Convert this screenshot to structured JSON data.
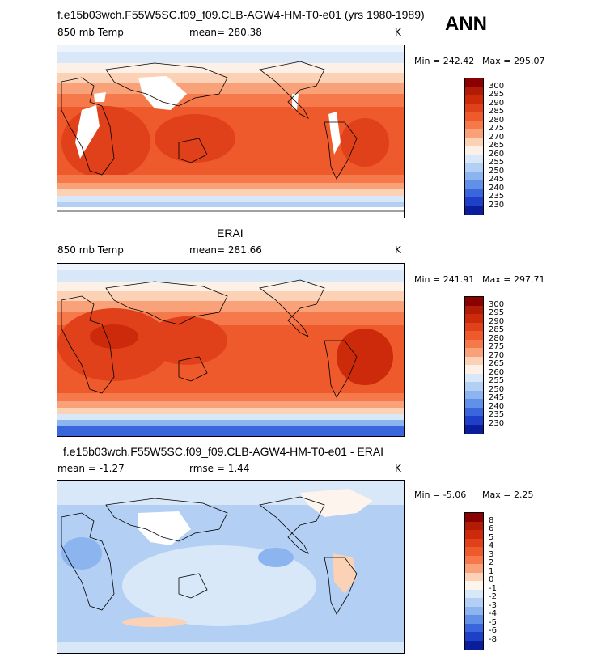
{
  "header": {
    "run_title": "f.e15b03wch.F55W5SC.f09_f09.CLB-AGW4-HM-T0-e01 (yrs 1980-1989)",
    "season": "ANN"
  },
  "panels": [
    {
      "title": "",
      "left_label": "850 mb Temp",
      "mean_label": "mean= 280.38",
      "units": "K",
      "min_label": "Min = 242.42",
      "max_label": "Max = 295.07",
      "colorbar": {
        "labels": [
          "300",
          "295",
          "290",
          "285",
          "280",
          "275",
          "270",
          "265",
          "260",
          "255",
          "250",
          "245",
          "240",
          "235",
          "230"
        ],
        "colors": [
          "#8b0000",
          "#b01c06",
          "#cc2a0a",
          "#e0401a",
          "#ee5a2c",
          "#f5794a",
          "#f9a27a",
          "#fcd2b6",
          "#fdf0e6",
          "#d8e8f8",
          "#b3d0f4",
          "#8cb4ef",
          "#6190e8",
          "#3a66dd",
          "#1e40c8",
          "#0a1e9c"
        ]
      }
    },
    {
      "title": "ERAI",
      "left_label": "850 mb Temp",
      "mean_label": "mean= 281.66",
      "units": "K",
      "min_label": "Min = 241.91",
      "max_label": "Max = 297.71",
      "colorbar": {
        "labels": [
          "300",
          "295",
          "290",
          "285",
          "280",
          "275",
          "270",
          "265",
          "260",
          "255",
          "250",
          "245",
          "240",
          "235",
          "230"
        ],
        "colors": [
          "#8b0000",
          "#b01c06",
          "#cc2a0a",
          "#e0401a",
          "#ee5a2c",
          "#f5794a",
          "#f9a27a",
          "#fcd2b6",
          "#fdf0e6",
          "#d8e8f8",
          "#b3d0f4",
          "#8cb4ef",
          "#6190e8",
          "#3a66dd",
          "#1e40c8",
          "#0a1e9c"
        ]
      }
    },
    {
      "title": "f.e15b03wch.F55W5SC.f09_f09.CLB-AGW4-HM-T0-e01 - ERAI",
      "left_label": "mean =   -1.27",
      "mean_label": "rmse =    1.44",
      "units": "K",
      "min_label": "Min =   -5.06",
      "max_label": "Max =    2.25",
      "colorbar": {
        "labels": [
          "8",
          "6",
          "5",
          "4",
          "3",
          "2",
          "1",
          "0",
          "-1",
          "-2",
          "-3",
          "-4",
          "-5",
          "-6",
          "-8"
        ],
        "colors": [
          "#8b0000",
          "#b01c06",
          "#cc2a0a",
          "#e0401a",
          "#ee5a2c",
          "#f5794a",
          "#f9a27a",
          "#fcd2b6",
          "#fdf4ee",
          "#d8e8f8",
          "#b3d0f4",
          "#8cb4ef",
          "#6190e8",
          "#3a66dd",
          "#1e40c8",
          "#0a1e9c"
        ]
      }
    }
  ]
}
